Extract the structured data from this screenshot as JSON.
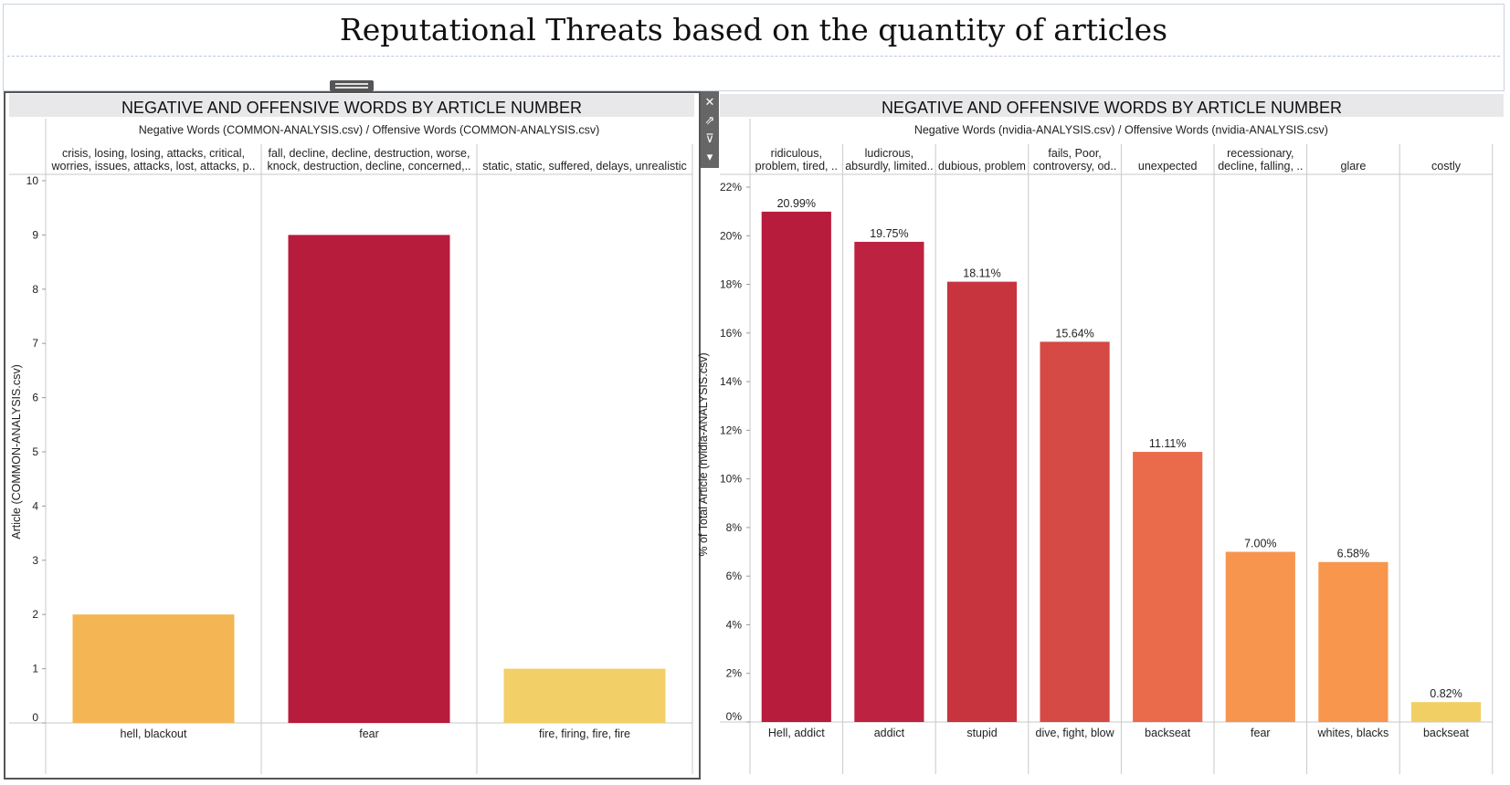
{
  "title": "Reputational Threats based on the quantity of articles",
  "toolbar": {
    "close_icon": "close-icon",
    "open_icon": "open-external-icon",
    "filter_icon": "filter-icon",
    "menu_icon": "dropdown-arrow-icon"
  },
  "chart_data": [
    {
      "type": "bar",
      "title": "NEGATIVE AND OFFENSIVE WORDS BY ARTICLE NUMBER",
      "column_header_title": "Negative Words (COMMON-ANALYSIS.csv)  /  Offensive Words (COMMON-ANALYSIS.csv)",
      "groups": [
        "crisis, losing, losing, attacks, critical,\nworries, issues, attacks, lost, attacks, p..",
        "fall, decline, decline, destruction, worse,\nknock, destruction, decline, concerned,..",
        "static, static, suffered, delays, unrealistic"
      ],
      "categories": [
        "hell, blackout",
        "fear",
        "fire, firing, fire, fire"
      ],
      "values": [
        2,
        9,
        1
      ],
      "colors": [
        "#f4b654",
        "#b71c3c",
        "#f2d067"
      ],
      "ylabel": "Article (COMMON-ANALYSIS.csv)",
      "ylim": [
        0,
        10
      ],
      "yticks": [
        "0",
        "1",
        "2",
        "3",
        "4",
        "5",
        "6",
        "7",
        "8",
        "9",
        "10"
      ]
    },
    {
      "type": "bar",
      "title": "NEGATIVE AND OFFENSIVE WORDS BY ARTICLE NUMBER",
      "column_header_title": "Negative Words (nvidia-ANALYSIS.csv)  /  Offensive Words (nvidia-ANALYSIS.csv)",
      "groups": [
        "ridiculous,\nproblem, tired, ..",
        "ludicrous,\nabsurdly, limited..",
        "dubious, problem",
        "fails, Poor,\ncontroversy, od..",
        "unexpected",
        "recessionary,\ndecline, falling, ..",
        "glare",
        "costly"
      ],
      "categories": [
        "Hell, addict",
        "addict",
        "stupid",
        "dive, fight, blow",
        "backseat",
        "fear",
        "whites, blacks",
        "backseat"
      ],
      "values": [
        20.99,
        19.75,
        18.11,
        15.64,
        11.11,
        7.0,
        6.58,
        0.82
      ],
      "value_labels": [
        "20.99%",
        "19.75%",
        "18.11%",
        "15.64%",
        "11.11%",
        "7.00%",
        "6.58%",
        "0.82%"
      ],
      "colors": [
        "#b71c3c",
        "#bd2240",
        "#c7343e",
        "#d54a44",
        "#ea6b4b",
        "#f7954e",
        "#f7964c",
        "#f2cf65"
      ],
      "ylabel": "% of Total Article (nvidia-ANALYSIS.csv)",
      "ylim": [
        0,
        22
      ],
      "yticks": [
        "0%",
        "2%",
        "4%",
        "6%",
        "8%",
        "10%",
        "12%",
        "14%",
        "16%",
        "18%",
        "20%",
        "22%"
      ]
    }
  ]
}
